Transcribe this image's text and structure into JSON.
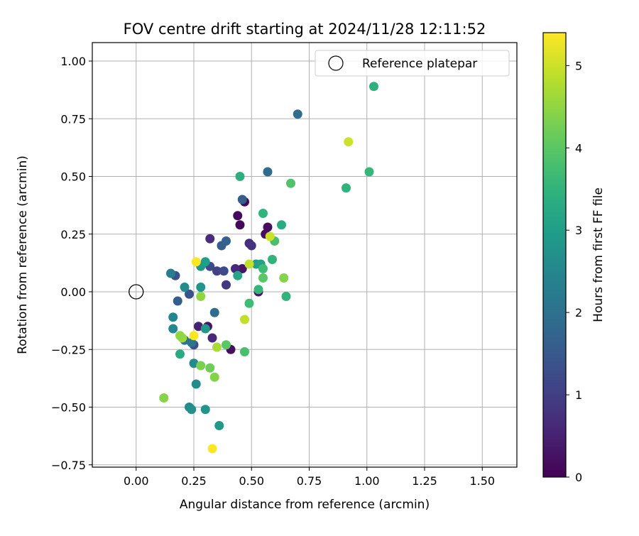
{
  "chart_data": {
    "type": "scatter",
    "title": "FOV centre drift starting at 2024/11/28 12:11:52",
    "xlabel": "Angular distance from reference (arcmin)",
    "ylabel": "Rotation from reference (arcmin)",
    "xlim": [
      -0.19,
      1.65
    ],
    "ylim": [
      -0.76,
      1.08
    ],
    "xticks": [
      "0.00",
      "0.25",
      "0.50",
      "0.75",
      "1.00",
      "1.25",
      "1.50"
    ],
    "yticks": [
      "−0.75",
      "−0.50",
      "−0.25",
      "0.00",
      "0.25",
      "0.50",
      "0.75",
      "1.00"
    ],
    "grid": true,
    "legend": {
      "position": "top-right",
      "label": "Reference platepar"
    },
    "reference_point": {
      "x": 0.0,
      "y": 0.0
    },
    "colorbar": {
      "label": "Hours from first FF file",
      "colormap": "viridis",
      "range": [
        0,
        5.4
      ],
      "ticks": [
        "0",
        "1",
        "2",
        "3",
        "4",
        "5"
      ]
    },
    "points": [
      {
        "x": 0.47,
        "y": 0.39,
        "h": 0.1
      },
      {
        "x": 0.44,
        "y": 0.33,
        "h": 0.1
      },
      {
        "x": 0.45,
        "y": 0.29,
        "h": 0.1
      },
      {
        "x": 0.57,
        "y": 0.28,
        "h": 0.2
      },
      {
        "x": 0.56,
        "y": 0.25,
        "h": 0.2
      },
      {
        "x": 0.53,
        "y": 0.0,
        "h": 0.3
      },
      {
        "x": 0.46,
        "y": 0.1,
        "h": 0.3
      },
      {
        "x": 0.41,
        "y": -0.25,
        "h": 0.2
      },
      {
        "x": 0.31,
        "y": -0.15,
        "h": 0.3
      },
      {
        "x": 0.27,
        "y": -0.15,
        "h": 0.5
      },
      {
        "x": 0.43,
        "y": 0.1,
        "h": 0.6
      },
      {
        "x": 0.32,
        "y": 0.23,
        "h": 0.7
      },
      {
        "x": 0.49,
        "y": 0.21,
        "h": 0.7
      },
      {
        "x": 0.5,
        "y": 0.2,
        "h": 0.8
      },
      {
        "x": 0.33,
        "y": -0.2,
        "h": 0.6
      },
      {
        "x": 0.39,
        "y": 0.03,
        "h": 0.9
      },
      {
        "x": 0.32,
        "y": 0.11,
        "h": 1.2
      },
      {
        "x": 0.35,
        "y": 0.09,
        "h": 1.1
      },
      {
        "x": 0.38,
        "y": 0.09,
        "h": 1.2
      },
      {
        "x": 0.25,
        "y": -0.23,
        "h": 1.3
      },
      {
        "x": 0.23,
        "y": -0.01,
        "h": 1.4
      },
      {
        "x": 0.17,
        "y": 0.07,
        "h": 1.4
      },
      {
        "x": 0.18,
        "y": -0.04,
        "h": 1.6
      },
      {
        "x": 0.37,
        "y": 0.2,
        "h": 1.6
      },
      {
        "x": 0.39,
        "y": 0.22,
        "h": 1.7
      },
      {
        "x": 0.46,
        "y": 0.4,
        "h": 1.6
      },
      {
        "x": 0.57,
        "y": 0.52,
        "h": 1.9
      },
      {
        "x": 0.7,
        "y": 0.77,
        "h": 1.9
      },
      {
        "x": 0.34,
        "y": -0.09,
        "h": 1.9
      },
      {
        "x": 0.21,
        "y": -0.21,
        "h": 2.1
      },
      {
        "x": 0.24,
        "y": -0.22,
        "h": 2.1
      },
      {
        "x": 0.15,
        "y": 0.08,
        "h": 2.3
      },
      {
        "x": 0.16,
        "y": -0.11,
        "h": 2.5
      },
      {
        "x": 0.16,
        "y": -0.16,
        "h": 2.5
      },
      {
        "x": 0.21,
        "y": 0.02,
        "h": 2.6
      },
      {
        "x": 0.25,
        "y": -0.31,
        "h": 2.6
      },
      {
        "x": 0.26,
        "y": -0.4,
        "h": 2.6
      },
      {
        "x": 0.23,
        "y": -0.5,
        "h": 2.6
      },
      {
        "x": 0.24,
        "y": -0.51,
        "h": 2.7
      },
      {
        "x": 0.3,
        "y": -0.51,
        "h": 2.8
      },
      {
        "x": 0.36,
        "y": -0.58,
        "h": 2.9
      },
      {
        "x": 0.3,
        "y": -0.16,
        "h": 2.9
      },
      {
        "x": 0.28,
        "y": 0.02,
        "h": 2.8
      },
      {
        "x": 0.28,
        "y": 0.11,
        "h": 2.9
      },
      {
        "x": 0.3,
        "y": 0.13,
        "h": 3.0
      },
      {
        "x": 0.19,
        "y": -0.27,
        "h": 3.3
      },
      {
        "x": 0.52,
        "y": 0.12,
        "h": 3.0
      },
      {
        "x": 0.54,
        "y": 0.12,
        "h": 3.1
      },
      {
        "x": 0.44,
        "y": 0.07,
        "h": 3.2
      },
      {
        "x": 0.45,
        "y": 0.5,
        "h": 3.4
      },
      {
        "x": 0.55,
        "y": 0.34,
        "h": 3.5
      },
      {
        "x": 0.63,
        "y": 0.29,
        "h": 3.3
      },
      {
        "x": 1.03,
        "y": 0.89,
        "h": 3.4
      },
      {
        "x": 0.59,
        "y": 0.14,
        "h": 3.5
      },
      {
        "x": 0.91,
        "y": 0.45,
        "h": 3.5
      },
      {
        "x": 1.01,
        "y": 0.52,
        "h": 3.6
      },
      {
        "x": 0.65,
        "y": -0.02,
        "h": 3.5
      },
      {
        "x": 0.55,
        "y": 0.1,
        "h": 3.7
      },
      {
        "x": 0.53,
        "y": 0.01,
        "h": 3.6
      },
      {
        "x": 0.49,
        "y": -0.05,
        "h": 3.7
      },
      {
        "x": 0.47,
        "y": -0.26,
        "h": 3.8
      },
      {
        "x": 0.6,
        "y": 0.22,
        "h": 3.8
      },
      {
        "x": 0.67,
        "y": 0.47,
        "h": 3.9
      },
      {
        "x": 0.55,
        "y": 0.06,
        "h": 4.0
      },
      {
        "x": 0.39,
        "y": -0.23,
        "h": 4.0
      },
      {
        "x": 0.32,
        "y": -0.33,
        "h": 4.2
      },
      {
        "x": 0.28,
        "y": -0.32,
        "h": 4.3
      },
      {
        "x": 0.34,
        "y": -0.37,
        "h": 4.4
      },
      {
        "x": 0.12,
        "y": -0.46,
        "h": 4.4
      },
      {
        "x": 0.64,
        "y": 0.06,
        "h": 4.4
      },
      {
        "x": 0.28,
        "y": -0.02,
        "h": 4.5
      },
      {
        "x": 0.2,
        "y": -0.2,
        "h": 4.6
      },
      {
        "x": 0.19,
        "y": -0.19,
        "h": 4.5
      },
      {
        "x": 0.35,
        "y": -0.24,
        "h": 4.7
      },
      {
        "x": 0.47,
        "y": -0.12,
        "h": 4.9
      },
      {
        "x": 0.49,
        "y": 0.12,
        "h": 4.9
      },
      {
        "x": 0.58,
        "y": 0.24,
        "h": 5.0
      },
      {
        "x": 0.92,
        "y": 0.65,
        "h": 5.0
      },
      {
        "x": 0.25,
        "y": -0.19,
        "h": 5.4
      },
      {
        "x": 0.26,
        "y": 0.13,
        "h": 5.4
      },
      {
        "x": 0.33,
        "y": -0.68,
        "h": 5.4
      }
    ]
  }
}
